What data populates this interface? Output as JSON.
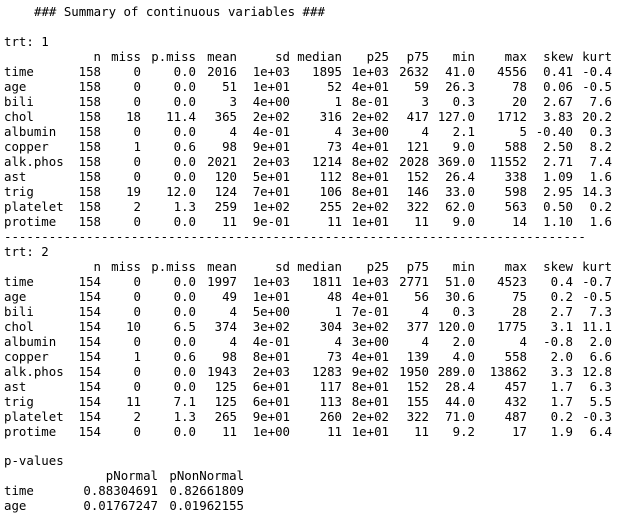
{
  "header": "### Summary of continuous variables ###",
  "strata": [
    {
      "label": "trt: 1",
      "columns": [
        "n",
        "miss",
        "p.miss",
        "mean",
        "sd",
        "median",
        "p25",
        "p75",
        "min",
        "max",
        "skew",
        "kurt"
      ],
      "rows": [
        [
          "time",
          "158",
          "0",
          "0.0",
          "2016",
          "1e+03",
          "1895",
          "1e+03",
          "2632",
          "41.0",
          "4556",
          "0.41",
          "-0.4"
        ],
        [
          "age",
          "158",
          "0",
          "0.0",
          "51",
          "1e+01",
          "52",
          "4e+01",
          "59",
          "26.3",
          "78",
          "0.06",
          "-0.5"
        ],
        [
          "bili",
          "158",
          "0",
          "0.0",
          "3",
          "4e+00",
          "1",
          "8e-01",
          "3",
          "0.3",
          "20",
          "2.67",
          "7.6"
        ],
        [
          "chol",
          "158",
          "18",
          "11.4",
          "365",
          "2e+02",
          "316",
          "2e+02",
          "417",
          "127.0",
          "1712",
          "3.83",
          "20.2"
        ],
        [
          "albumin",
          "158",
          "0",
          "0.0",
          "4",
          "4e-01",
          "4",
          "3e+00",
          "4",
          "2.1",
          "5",
          "-0.40",
          "0.3"
        ],
        [
          "copper",
          "158",
          "1",
          "0.6",
          "98",
          "9e+01",
          "73",
          "4e+01",
          "121",
          "9.0",
          "588",
          "2.50",
          "8.2"
        ],
        [
          "alk.phos",
          "158",
          "0",
          "0.0",
          "2021",
          "2e+03",
          "1214",
          "8e+02",
          "2028",
          "369.0",
          "11552",
          "2.71",
          "7.4"
        ],
        [
          "ast",
          "158",
          "0",
          "0.0",
          "120",
          "5e+01",
          "112",
          "8e+01",
          "152",
          "26.4",
          "338",
          "1.09",
          "1.6"
        ],
        [
          "trig",
          "158",
          "19",
          "12.0",
          "124",
          "7e+01",
          "106",
          "8e+01",
          "146",
          "33.0",
          "598",
          "2.95",
          "14.3"
        ],
        [
          "platelet",
          "158",
          "2",
          "1.3",
          "259",
          "1e+02",
          "255",
          "2e+02",
          "322",
          "62.0",
          "563",
          "0.50",
          "0.2"
        ],
        [
          "protime",
          "158",
          "0",
          "0.0",
          "11",
          "9e-01",
          "11",
          "1e+01",
          "11",
          "9.0",
          "14",
          "1.10",
          "1.6"
        ]
      ]
    },
    {
      "label": "trt: 2",
      "columns": [
        "n",
        "miss",
        "p.miss",
        "mean",
        "sd",
        "median",
        "p25",
        "p75",
        "min",
        "max",
        "skew",
        "kurt"
      ],
      "rows": [
        [
          "time",
          "154",
          "0",
          "0.0",
          "1997",
          "1e+03",
          "1811",
          "1e+03",
          "2771",
          "51.0",
          "4523",
          "0.4",
          "-0.7"
        ],
        [
          "age",
          "154",
          "0",
          "0.0",
          "49",
          "1e+01",
          "48",
          "4e+01",
          "56",
          "30.6",
          "75",
          "0.2",
          "-0.5"
        ],
        [
          "bili",
          "154",
          "0",
          "0.0",
          "4",
          "5e+00",
          "1",
          "7e-01",
          "4",
          "0.3",
          "28",
          "2.7",
          "7.3"
        ],
        [
          "chol",
          "154",
          "10",
          "6.5",
          "374",
          "3e+02",
          "304",
          "3e+02",
          "377",
          "120.0",
          "1775",
          "3.1",
          "11.1"
        ],
        [
          "albumin",
          "154",
          "0",
          "0.0",
          "4",
          "4e-01",
          "4",
          "3e+00",
          "4",
          "2.0",
          "4",
          "-0.8",
          "2.0"
        ],
        [
          "copper",
          "154",
          "1",
          "0.6",
          "98",
          "8e+01",
          "73",
          "4e+01",
          "139",
          "4.0",
          "558",
          "2.0",
          "6.6"
        ],
        [
          "alk.phos",
          "154",
          "0",
          "0.0",
          "1943",
          "2e+03",
          "1283",
          "9e+02",
          "1950",
          "289.0",
          "13862",
          "3.3",
          "12.8"
        ],
        [
          "ast",
          "154",
          "0",
          "0.0",
          "125",
          "6e+01",
          "117",
          "8e+01",
          "152",
          "28.4",
          "457",
          "1.7",
          "6.3"
        ],
        [
          "trig",
          "154",
          "11",
          "7.1",
          "125",
          "6e+01",
          "113",
          "8e+01",
          "155",
          "44.0",
          "432",
          "1.7",
          "5.5"
        ],
        [
          "platelet",
          "154",
          "2",
          "1.3",
          "265",
          "9e+01",
          "260",
          "2e+02",
          "322",
          "71.0",
          "487",
          "0.2",
          "-0.3"
        ],
        [
          "protime",
          "154",
          "0",
          "0.0",
          "11",
          "1e+00",
          "11",
          "1e+01",
          "11",
          "9.2",
          "17",
          "1.9",
          "6.4"
        ]
      ]
    }
  ],
  "separator": "------------------------------------------------------------------------------",
  "pvalues": {
    "label": "p-values",
    "columns": [
      "pNormal",
      "pNonNormal"
    ],
    "rows": [
      [
        "time",
        "0.88304691",
        "0.82661809"
      ],
      [
        "age",
        "0.01767247",
        "0.01962155"
      ]
    ]
  }
}
